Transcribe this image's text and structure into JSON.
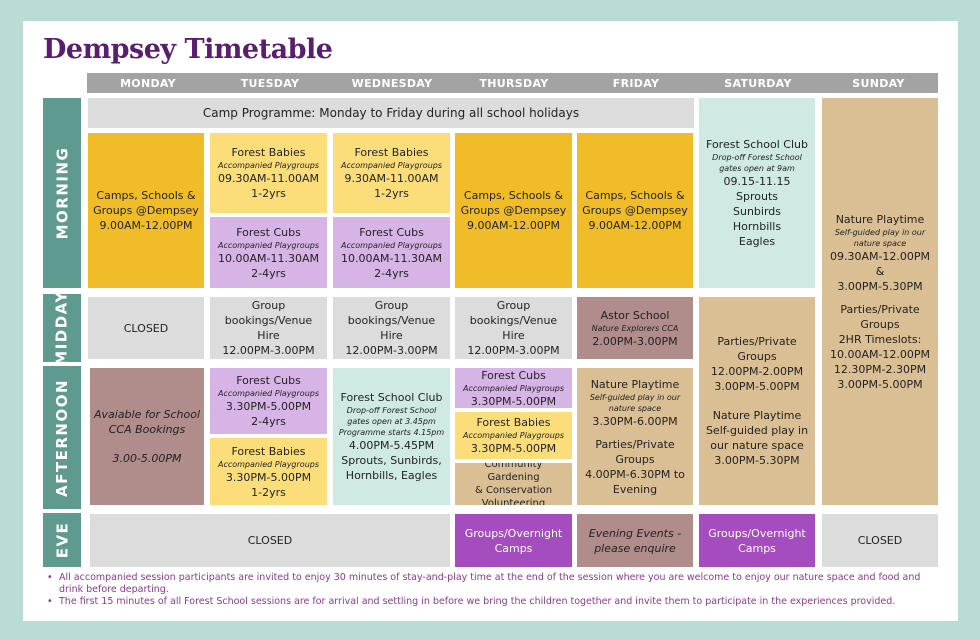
{
  "title": "Dempsey Timetable",
  "days": [
    "MONDAY",
    "TUESDAY",
    "WEDNESDAY",
    "THURSDAY",
    "FRIDAY",
    "SATURDAY",
    "SUNDAY"
  ],
  "periods": [
    "MORNING",
    "MIDDAY",
    "AFTERNOON",
    "EVE"
  ],
  "colors": {
    "yellow": "#f0bd28",
    "pale_yellow": "#fbde7a",
    "lilac": "#d7b4e6",
    "grey": "#dcdcdc",
    "mint": "#cfe9e4",
    "tan": "#d9bf93",
    "mauve": "#b08c8a",
    "purple": "#a54cbf",
    "teal": "#5f9a8e"
  },
  "camp_banner": "Camp Programme: Monday to Friday during all school holidays",
  "morning": {
    "monday": [
      "Camps, Schools &",
      "Groups @Dempsey",
      "9.00AM-12.00PM"
    ],
    "tue_babies": {
      "title": "Forest Babies",
      "sub": "Accompanied Playgroups",
      "time": "09.30AM-11.00AM",
      "age": "1-2yrs"
    },
    "tue_cubs": {
      "title": "Forest Cubs",
      "sub": "Accompanied Playgroups",
      "time": "10.00AM-11.30AM",
      "age": "2-4yrs"
    },
    "wed_babies": {
      "title": "Forest Babies",
      "sub": "Accompanied Playgroups",
      "time": "9.30AM-11.00AM",
      "age": "1-2yrs"
    },
    "wed_cubs": {
      "title": "Forest Cubs",
      "sub": "Accompanied Playgroups",
      "time": "10.00AM-11.30AM",
      "age": "2-4yrs"
    },
    "thursday": [
      "Camps, Schools &",
      "Groups @Dempsey",
      "9.00AM-12.00PM"
    ],
    "friday": [
      "Camps, Schools &",
      "Groups @Dempsey",
      "9.00AM-12.00PM"
    ],
    "saturday": {
      "title": "Forest School Club",
      "sub1": "Drop-off Forest School",
      "sub2": "gates open at 9am",
      "time": "09.15-11.15",
      "groups": [
        "Sprouts",
        "Sunbirds",
        "Hornbills",
        "Eagles"
      ]
    }
  },
  "sunday_all": {
    "title": "Nature Playtime",
    "sub": [
      "Self-guided play in our",
      "nature space"
    ],
    "times": [
      "09.30AM-12.00PM &",
      "3.00PM-5.30PM"
    ],
    "parties": [
      "Parties/Private",
      "Groups"
    ],
    "slots_label": "2HR Timeslots:",
    "slots": [
      "10.00AM-12.00PM",
      "12.30PM-2.30PM",
      "3.00PM-5.00PM"
    ]
  },
  "midday": {
    "monday": "CLOSED",
    "tuesday": {
      "title": [
        "Group bookings/Venue",
        "Hire"
      ],
      "time": "12.00PM-3.00PM"
    },
    "wednesday": {
      "title": [
        "Group bookings/Venue",
        "Hire"
      ],
      "time": "12.00PM-3.00PM"
    },
    "thursday": {
      "title": [
        "Group bookings/Venue",
        "Hire"
      ],
      "time": "12.00PM-3.00PM"
    },
    "friday": {
      "title": "Astor School",
      "sub": "Nature Explorers CCA",
      "time": "2.00PM-3.00PM"
    }
  },
  "saturday_pm": {
    "parties": [
      "Parties/Private",
      "Groups"
    ],
    "times": [
      "12.00PM-2.00PM",
      "3.00PM-5.00PM"
    ],
    "nature": [
      "Nature Playtime",
      "Self-guided play in",
      "our nature space"
    ],
    "nature_time": "3.00PM-5.30PM"
  },
  "afternoon": {
    "monday": [
      "Avaiable for School",
      "CCA Bookings",
      "3.00-5.00PM"
    ],
    "tue_cubs": {
      "title": "Forest Cubs",
      "sub": "Accompanied Playgroups",
      "time": "3.30PM-5.00PM",
      "age": "2-4yrs"
    },
    "tue_babies": {
      "title": "Forest Babies",
      "sub": "Accompanied Playgroups",
      "time": "3.30PM-5.00PM",
      "age": "1-2yrs"
    },
    "wednesday": {
      "title": "Forest School Club",
      "sub": [
        "Drop-off Forest School",
        "gates open at 3.45pm",
        "Programme starts 4.15pm"
      ],
      "time": "4.00PM-5.45PM",
      "groups": [
        "Sprouts, Sunbirds,",
        "Hornbills, Eagles"
      ]
    },
    "thu_cubs": {
      "title": "Forest Cubs",
      "sub": "Accompanied Playgroups",
      "time": "3.30PM-5.00PM"
    },
    "thu_babies": {
      "title": "Forest Babies",
      "sub": "Accompanied Playgroups",
      "time": "3.30PM-5.00PM"
    },
    "thu_gardening": [
      "Community Gardening",
      "& Conservation",
      "Volunteering"
    ],
    "friday": {
      "title": "Nature Playtime",
      "sub": [
        "Self-guided play in our",
        "nature space"
      ],
      "time": "3.30PM-6.00PM",
      "parties": [
        "Parties/Private",
        "Groups"
      ],
      "parties_time": [
        "4.00PM-6.30PM to",
        "Evening"
      ]
    }
  },
  "eve": {
    "mon_wed": "CLOSED",
    "thursday": [
      "Groups/Overnight",
      "Camps"
    ],
    "friday": [
      "Evening Events -",
      "please enquire"
    ],
    "saturday": [
      "Groups/Overnight",
      "Camps"
    ],
    "sunday": "CLOSED"
  },
  "notes": [
    "All accompanied session participants are invited to enjoy 30 minutes of stay-and-play time at the end of the session where you are welcome to enjoy our nature space and food and drink before departing.",
    "The first 15 minutes of all Forest School sessions are for arrival and settling in before we bring the children together and invite them to participate in the experiences provided."
  ]
}
